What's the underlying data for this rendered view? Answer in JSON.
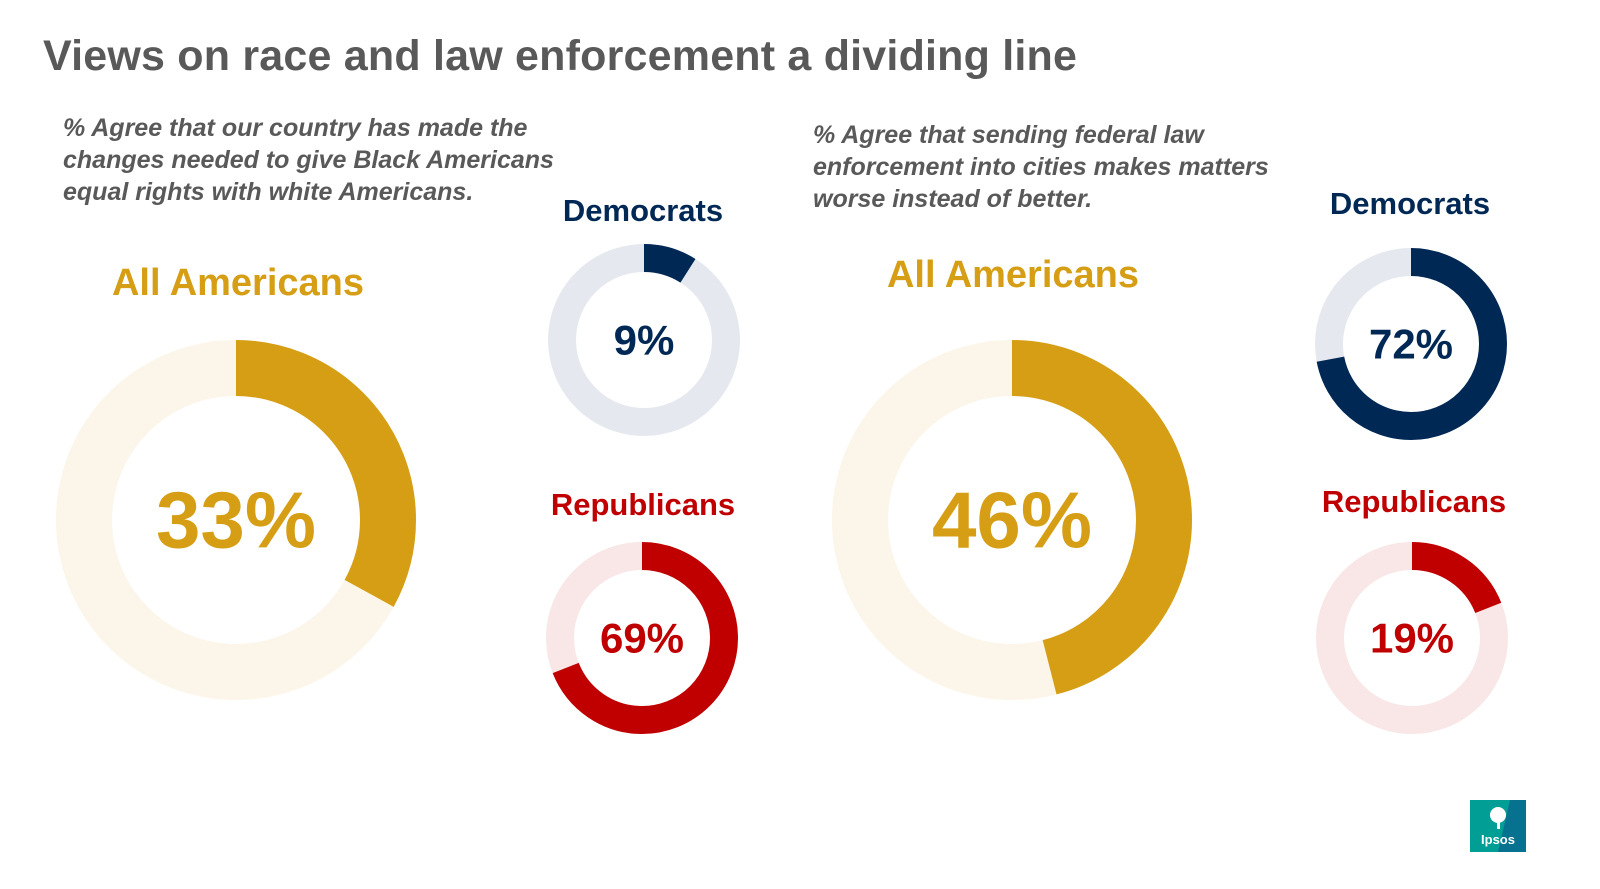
{
  "title": "Views on race and law enforcement a dividing line",
  "brand": {
    "name": "Ipsos"
  },
  "colors": {
    "gold": "#D69E14",
    "gold_track": "#FBF6E9",
    "navy": "#002855",
    "navy_track": "#E5E8EE",
    "red": "#C00000",
    "red_track": "#F9E6E6"
  },
  "panels": [
    {
      "question": "% Agree that our country has made the changes needed to give Black Americans equal rights with white Americans."
    },
    {
      "question": "% Agree that sending federal law enforcement into cities makes matters worse instead of better."
    }
  ],
  "chart_data": [
    {
      "type": "pie",
      "style": "donut",
      "panel": 0,
      "label": "All Americans",
      "value": 33,
      "display": "33%",
      "color": "#D69E14",
      "track": "#FBF6E9"
    },
    {
      "type": "pie",
      "style": "donut",
      "panel": 0,
      "label": "Democrats",
      "value": 9,
      "display": "9%",
      "color": "#002855",
      "track": "#E5E8EE"
    },
    {
      "type": "pie",
      "style": "donut",
      "panel": 0,
      "label": "Republicans",
      "value": 69,
      "display": "69%",
      "color": "#C00000",
      "track": "#F9E6E6"
    },
    {
      "type": "pie",
      "style": "donut",
      "panel": 1,
      "label": "All Americans",
      "value": 46,
      "display": "46%",
      "color": "#D69E14",
      "track": "#FBF6E9"
    },
    {
      "type": "pie",
      "style": "donut",
      "panel": 1,
      "label": "Democrats",
      "value": 72,
      "display": "72%",
      "color": "#002855",
      "track": "#E5E8EE"
    },
    {
      "type": "pie",
      "style": "donut",
      "panel": 1,
      "label": "Republicans",
      "value": 19,
      "display": "19%",
      "color": "#C00000",
      "track": "#F9E6E6"
    }
  ]
}
